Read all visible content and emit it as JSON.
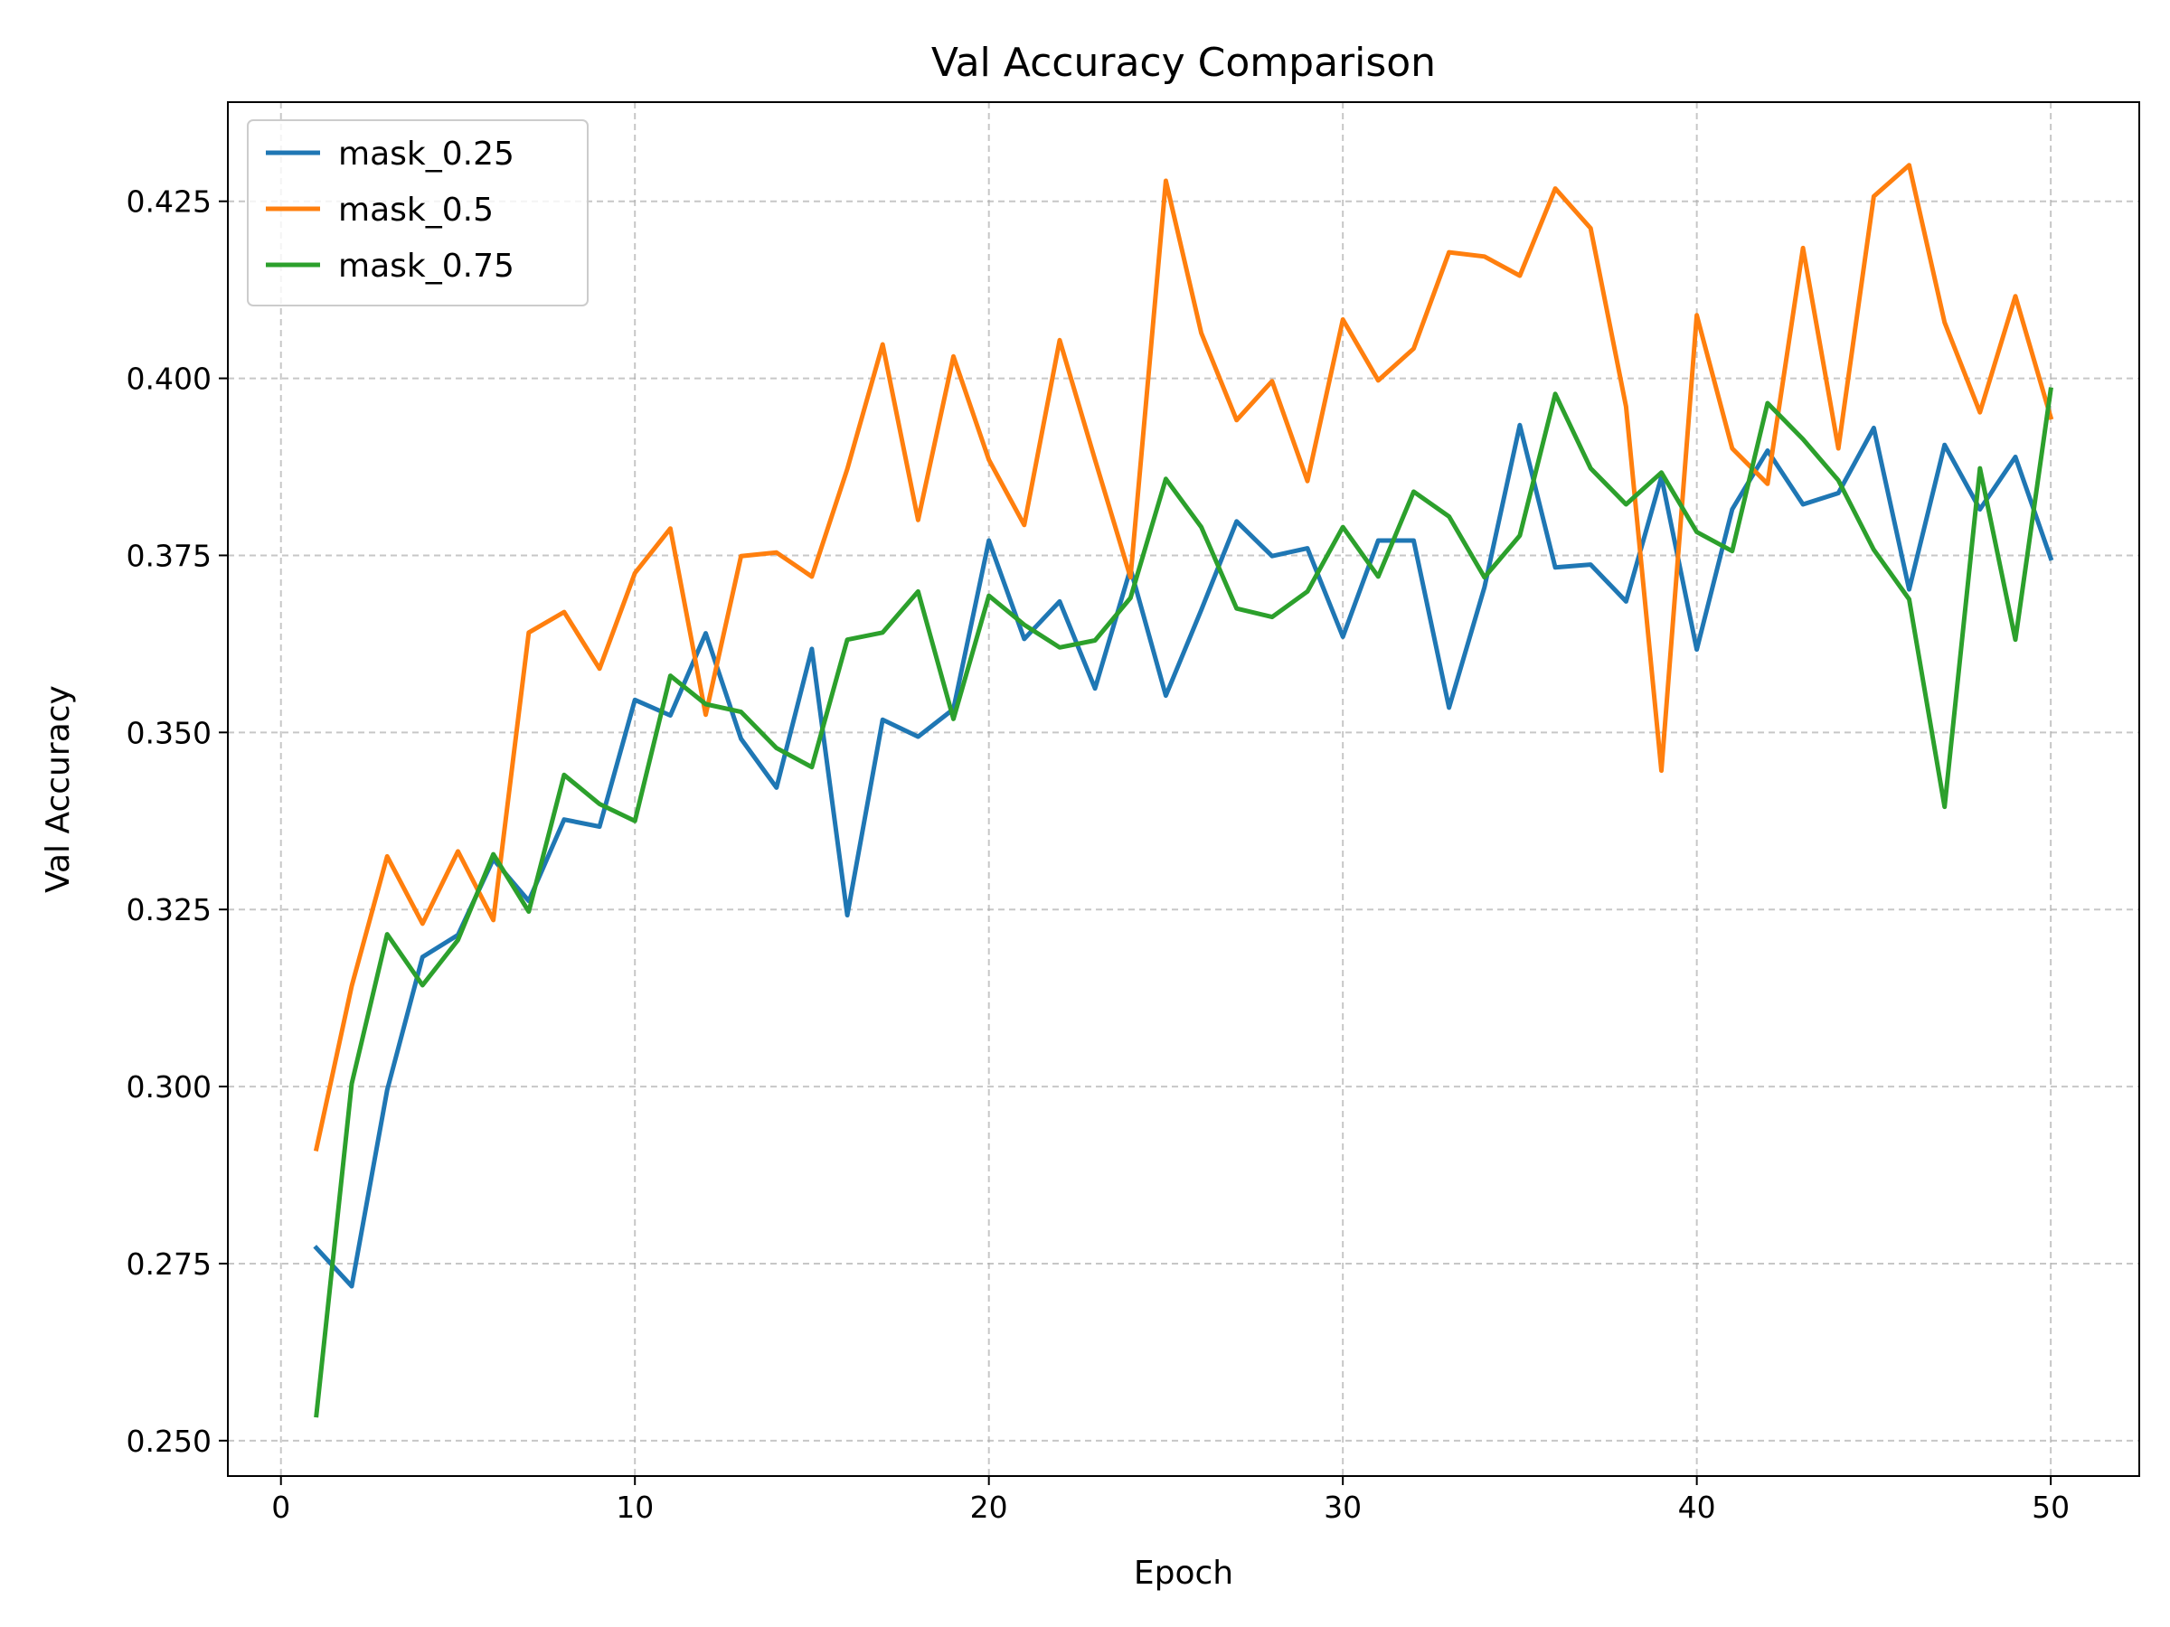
{
  "chart_data": {
    "type": "line",
    "title": "Val Accuracy Comparison",
    "xlabel": "Epoch",
    "ylabel": "Val Accuracy",
    "xlim": [
      -1.5,
      52.5
    ],
    "ylim": [
      0.245,
      0.439
    ],
    "xticks": [
      0,
      10,
      20,
      30,
      40,
      50
    ],
    "yticks": [
      0.25,
      0.275,
      0.3,
      0.325,
      0.35,
      0.375,
      0.4,
      0.425
    ],
    "xtick_labels": [
      "0",
      "10",
      "20",
      "30",
      "40",
      "50"
    ],
    "ytick_labels": [
      "0.250",
      "0.275",
      "0.300",
      "0.325",
      "0.350",
      "0.375",
      "0.400",
      "0.425"
    ],
    "grid": true,
    "legend_position": "top-left",
    "x": [
      1,
      2,
      3,
      4,
      5,
      6,
      7,
      8,
      9,
      10,
      11,
      12,
      13,
      14,
      15,
      16,
      17,
      18,
      19,
      20,
      21,
      22,
      23,
      24,
      25,
      26,
      27,
      28,
      29,
      30,
      31,
      32,
      33,
      34,
      35,
      36,
      37,
      38,
      39,
      40,
      41,
      42,
      43,
      44,
      45,
      46,
      47,
      48,
      49,
      50
    ],
    "series": [
      {
        "name": "mask_0.25",
        "color": "#1f77b4",
        "values": [
          0.2772,
          0.2718,
          0.2995,
          0.3183,
          0.3214,
          0.3321,
          0.3262,
          0.3377,
          0.3367,
          0.3546,
          0.3524,
          0.364,
          0.3491,
          0.3422,
          0.3618,
          0.3242,
          0.3518,
          0.3494,
          0.3533,
          0.3771,
          0.3632,
          0.3685,
          0.3562,
          0.3731,
          0.3552,
          0.3673,
          0.3798,
          0.3749,
          0.376,
          0.3635,
          0.3771,
          0.3771,
          0.3535,
          0.3705,
          0.3934,
          0.3733,
          0.3737,
          0.3685,
          0.3861,
          0.3617,
          0.3815,
          0.3898,
          0.3822,
          0.3838,
          0.393,
          0.3702,
          0.3906,
          0.3815,
          0.3889,
          0.3746
        ]
      },
      {
        "name": "mask_0.5",
        "color": "#ff7f0e",
        "values": [
          0.2912,
          0.3142,
          0.3325,
          0.323,
          0.3332,
          0.3235,
          0.3641,
          0.367,
          0.359,
          0.3725,
          0.3788,
          0.3525,
          0.3749,
          0.3754,
          0.372,
          0.3872,
          0.4048,
          0.38,
          0.4031,
          0.3885,
          0.3793,
          0.4054,
          0.3885,
          0.3719,
          0.4279,
          0.4064,
          0.3941,
          0.3996,
          0.3855,
          0.4083,
          0.3997,
          0.4042,
          0.4178,
          0.4172,
          0.4145,
          0.4268,
          0.4212,
          0.396,
          0.3446,
          0.4089,
          0.3901,
          0.3851,
          0.4184,
          0.3901,
          0.4257,
          0.4301,
          0.4079,
          0.3952,
          0.4116,
          0.3945
        ]
      },
      {
        "name": "mask_0.75",
        "color": "#2ca02c",
        "values": [
          0.2536,
          0.3004,
          0.3215,
          0.3143,
          0.3207,
          0.3328,
          0.3247,
          0.344,
          0.3399,
          0.3375,
          0.358,
          0.354,
          0.3529,
          0.3478,
          0.3451,
          0.3631,
          0.3641,
          0.3699,
          0.3519,
          0.3693,
          0.3652,
          0.362,
          0.363,
          0.369,
          0.3858,
          0.379,
          0.3675,
          0.3663,
          0.3699,
          0.379,
          0.372,
          0.384,
          0.3805,
          0.3719,
          0.3778,
          0.3978,
          0.3873,
          0.3822,
          0.3867,
          0.3783,
          0.3756,
          0.3965,
          0.3914,
          0.3856,
          0.3758,
          0.3688,
          0.3395,
          0.3873,
          0.3631,
          0.3984
        ]
      }
    ]
  }
}
